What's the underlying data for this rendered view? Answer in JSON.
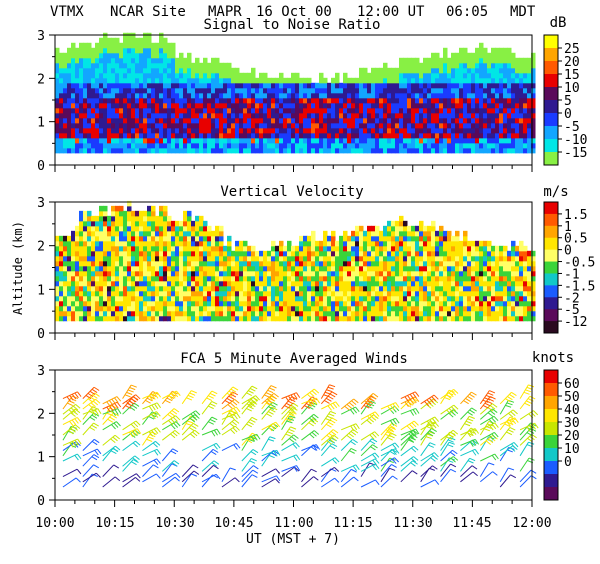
{
  "header": {
    "station": "VTMX",
    "site": "NCAR Site",
    "instrument": "MAPR",
    "date": "16 Oct 00",
    "time_ut": "12:00 UT",
    "time_local": "06:05",
    "tz": "MDT"
  },
  "x_axis": {
    "label": "UT  (MST + 7)",
    "range_hours": [
      10.0,
      12.0
    ],
    "ticks": [
      "10:00",
      "10:15",
      "10:30",
      "10:45",
      "11:00",
      "11:15",
      "11:30",
      "11:45",
      "12:00"
    ]
  },
  "y_axis_label": "Altitude (km)",
  "chart_data": [
    {
      "type": "heatmap",
      "title": "Signal to Noise Ratio",
      "xlabel": "UT  (MST + 7)",
      "ylabel": "Altitude (km)",
      "ylim": [
        0,
        3
      ],
      "yticks": [
        "0",
        "1",
        "2",
        "3"
      ],
      "unit": "dB",
      "colorbar": {
        "labels": [
          "25",
          "20",
          "15",
          "10",
          "5",
          "0",
          "-5",
          "-10",
          "-15"
        ],
        "colors": [
          "#ffff00",
          "#ffa500",
          "#ff5a00",
          "#e80000",
          "#5a0a5a",
          "#2f1a90",
          "#1a3bff",
          "#12a6ff",
          "#00e6e6",
          "#88f044"
        ]
      },
      "profile_summary": [
        {
          "altitude_range_km": [
            0.3,
            0.6
          ],
          "typical_db": 0
        },
        {
          "altitude_range_km": [
            0.6,
            1.6
          ],
          "typical_db": 5
        },
        {
          "altitude_range_km": [
            1.6,
            1.9
          ],
          "typical_db": 0
        },
        {
          "altitude_range_km": [
            1.9,
            2.3
          ],
          "typical_db": -10
        },
        {
          "altitude_range_km": [
            2.3,
            2.6
          ],
          "typical_db": -15
        }
      ]
    },
    {
      "type": "heatmap",
      "title": "Vertical Velocity",
      "xlabel": "UT  (MST + 7)",
      "ylabel": "Altitude (km)",
      "ylim": [
        0,
        3
      ],
      "yticks": [
        "0",
        "1",
        "2",
        "3"
      ],
      "unit": "m/s",
      "colorbar": {
        "labels": [
          "1.5",
          "1",
          "0.5",
          "0",
          "-0.5",
          "-1",
          "-1.5",
          "-2",
          "-5",
          "-12"
        ],
        "colors": [
          "#e80000",
          "#ff5a00",
          "#ffa500",
          "#ffe600",
          "#ffff66",
          "#3ad43a",
          "#12c8c8",
          "#1a5cff",
          "#2f1a90",
          "#5a0a5a",
          "#2a0a20"
        ]
      },
      "profile_summary": [
        {
          "altitude_range_km": [
            0.3,
            2.2
          ],
          "typical_ms": 0
        },
        {
          "altitude_range_km": [
            2.2,
            2.6
          ],
          "typical_ms": -0.5
        }
      ]
    },
    {
      "type": "scatter",
      "title": "FCA 5 Minute Averaged Winds",
      "xlabel": "UT  (MST + 7)",
      "ylabel": "Altitude (km)",
      "ylim": [
        0,
        3
      ],
      "yticks": [
        "0",
        "1",
        "2",
        "3"
      ],
      "unit": "knots",
      "marker": "wind barbs",
      "colorbar": {
        "labels": [
          "60",
          "50",
          "40",
          "30",
          "20",
          "10",
          "0"
        ],
        "colors": [
          "#e80000",
          "#ff5a00",
          "#ffa500",
          "#ffe600",
          "#c8e600",
          "#3ad43a",
          "#12c8c8",
          "#1a5cff",
          "#2f1a90",
          "#5a0a5a"
        ]
      },
      "profile_summary": [
        {
          "altitude_range_km": [
            0.0,
            0.6
          ],
          "typical_knots": 8
        },
        {
          "altitude_range_km": [
            0.6,
            1.2
          ],
          "typical_knots": 18
        },
        {
          "altitude_range_km": [
            1.2,
            2.0
          ],
          "typical_knots": 32
        },
        {
          "altitude_range_km": [
            2.0,
            2.5
          ],
          "typical_knots": 40
        }
      ]
    }
  ]
}
